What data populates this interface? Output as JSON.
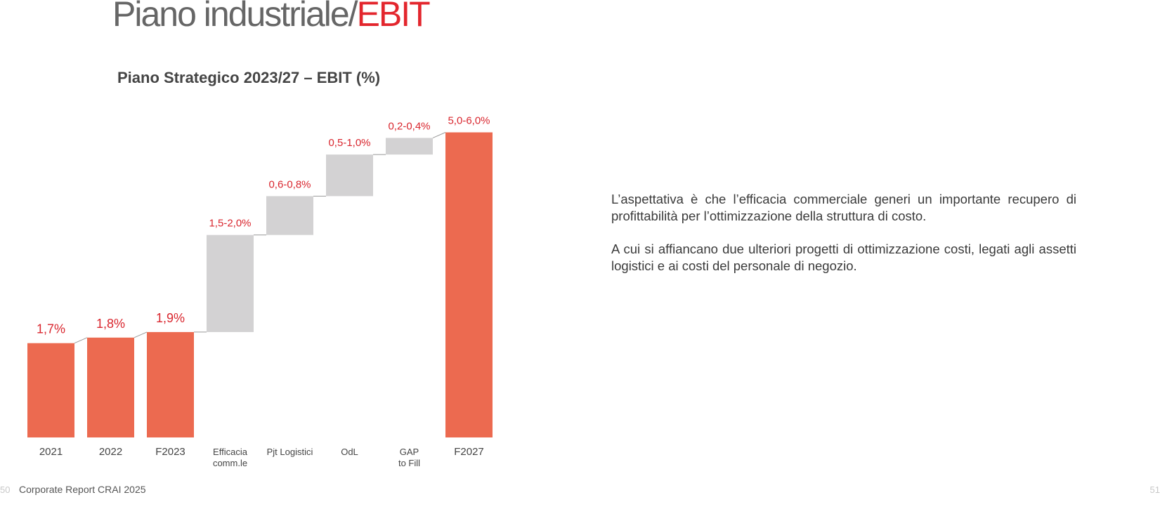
{
  "page_title": {
    "main": "Piano industriale/",
    "accent": "EBIT"
  },
  "chart_data": {
    "type": "waterfall",
    "title": "Piano Strategico 2023/27 – EBIT (%)",
    "categories": [
      [
        "2021"
      ],
      [
        "2022"
      ],
      [
        "F2023"
      ],
      [
        "Efficacia",
        "comm.le"
      ],
      [
        "Pjt Logistici"
      ],
      [
        "OdL"
      ],
      [
        "GAP",
        "to Fill"
      ],
      [
        "F2027"
      ]
    ],
    "kinds": [
      "total",
      "total",
      "total",
      "delta",
      "delta",
      "delta",
      "delta",
      "total"
    ],
    "values": [
      1.7,
      1.8,
      1.9,
      1.5,
      0.6,
      0.5,
      0.2,
      5.0
    ],
    "highs": [
      null,
      null,
      null,
      2.0,
      0.8,
      1.0,
      0.4,
      6.0
    ],
    "value_labels": [
      "1,7%",
      "1,8%",
      "1,9%",
      "1,5-2,0%",
      "0,6-0,8%",
      "0,5-1,0%",
      "0,2-0,4%",
      "5,0-6,0%"
    ],
    "colors": {
      "total": "#ec6a50",
      "delta": "#d3d2d3"
    }
  },
  "paragraphs": [
    "L’aspettativa è che l’efficacia commerciale generi un importante recupero di profittabilità per l’ottimizzazione della struttura di costo.",
    "A cui si affiancano due ulteriori progetti di ottimizzazione costi, legati agli assetti logistici e ai costi del personale di negozio."
  ],
  "footer": {
    "left_page": "50",
    "report": "Corporate Report CRAI 2025",
    "right_page": "51"
  }
}
